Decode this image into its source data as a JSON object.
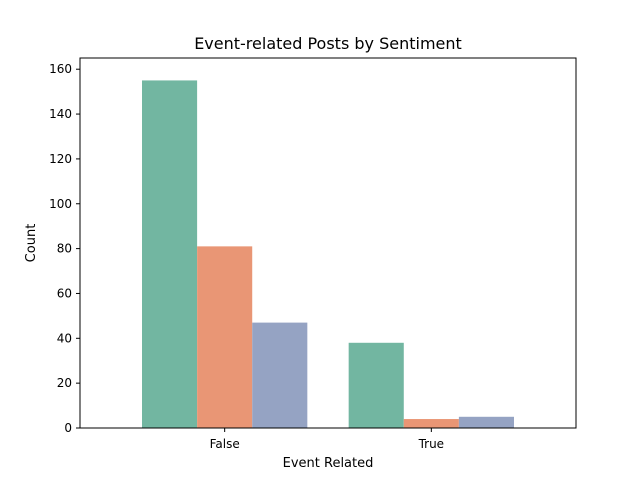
{
  "chart_data": {
    "type": "bar",
    "title": "Event-related Posts by Sentiment",
    "xlabel": "Event Related",
    "ylabel": "Count",
    "categories": [
      "False",
      "True"
    ],
    "ylim": [
      0,
      165
    ],
    "yticks": [
      0,
      20,
      40,
      60,
      80,
      100,
      120,
      140,
      160
    ],
    "grid": false,
    "series": [
      {
        "color": "#72b6a1",
        "values": [
          155,
          38
        ]
      },
      {
        "color": "#e99675",
        "values": [
          81,
          4
        ]
      },
      {
        "color": "#95a3c3",
        "values": [
          47,
          5
        ]
      }
    ]
  }
}
